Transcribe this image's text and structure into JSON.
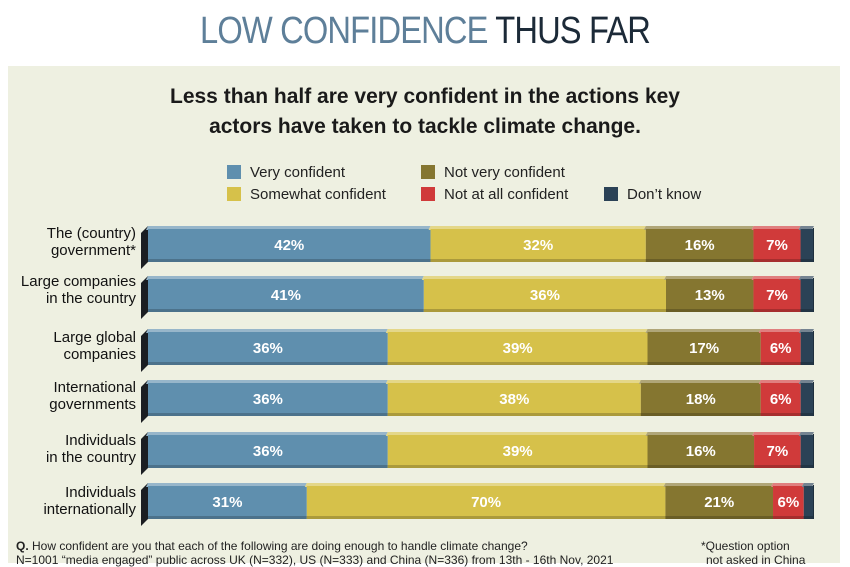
{
  "header": {
    "title_part1": "LOW CONFIDENCE",
    "title_part2": "THUS FAR"
  },
  "chart_data": {
    "type": "bar",
    "orientation": "horizontal",
    "stacked": true,
    "title": "Less than half are very confident in the actions key actors have taken to tackle climate change.",
    "title_lines": [
      "Less than half are very confident in the actions key",
      "actors have taken to tackle climate change."
    ],
    "categories": [
      [
        "The (country)",
        "government*"
      ],
      [
        "Large companies",
        "in the country"
      ],
      [
        "Large global",
        "companies"
      ],
      [
        "International",
        "governments"
      ],
      [
        "Individuals",
        "in the country"
      ],
      [
        "Individuals",
        "internationally"
      ]
    ],
    "series": [
      {
        "name": "Very confident",
        "color": "#5f8fae",
        "values": [
          42,
          41,
          36,
          36,
          36,
          31
        ]
      },
      {
        "name": "Somewhat confident",
        "color": "#d6c14a",
        "values": [
          32,
          36,
          39,
          38,
          39,
          70
        ]
      },
      {
        "name": "Not very confident",
        "color": "#857630",
        "values": [
          16,
          13,
          17,
          18,
          16,
          21
        ]
      },
      {
        "name": "Not at all confident",
        "color": "#d03a3a",
        "values": [
          7,
          7,
          6,
          6,
          7,
          6
        ]
      },
      {
        "name": "Don't know",
        "color": "#2b4256",
        "values": [
          2,
          2,
          2,
          2,
          2,
          2
        ]
      }
    ],
    "data_labels": [
      [
        "42%",
        "32%",
        "16%",
        "7%",
        ""
      ],
      [
        "41%",
        "36%",
        "13%",
        "7%",
        ""
      ],
      [
        "36%",
        "39%",
        "17%",
        "6%",
        ""
      ],
      [
        "36%",
        "38%",
        "18%",
        "6%",
        ""
      ],
      [
        "36%",
        "39%",
        "16%",
        "7%",
        ""
      ],
      [
        "31%",
        "70%",
        "21%",
        "6%",
        ""
      ]
    ],
    "legend_labels": [
      "Very confident",
      "Not very confident",
      "Somewhat confident",
      "Not at all confident",
      "Don’t know"
    ]
  },
  "footnotes": {
    "question_prefix": "Q.",
    "question": " How confident are you that each of the following are doing enough to handle climate change?",
    "sample": "N=1001 “media engaged” public across UK (N=332), US (N=333) and China (N=336) from 13th - 16th Nov, 2021",
    "note_line1": "*Question option",
    "note_line2": "not asked in China"
  }
}
